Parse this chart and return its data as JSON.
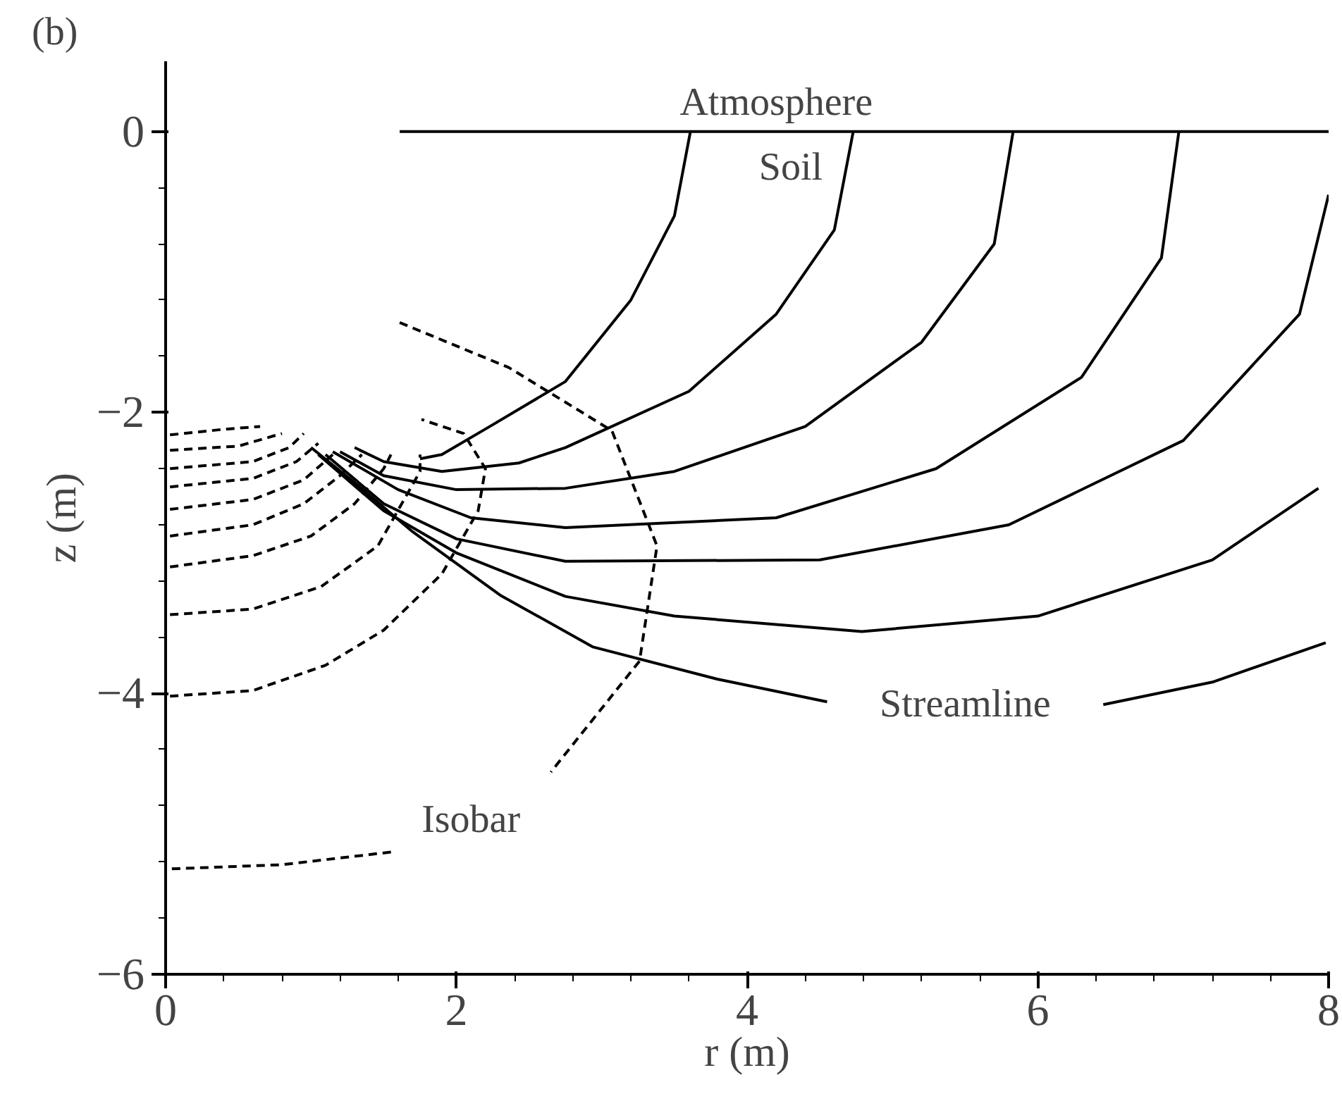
{
  "chart_data": {
    "type": "line",
    "title": "(b)",
    "xlabel": "r (m)",
    "ylabel": "z (m)",
    "xlim": [
      0,
      8
    ],
    "ylim": [
      -6,
      0.5
    ],
    "xticks": [
      0,
      2,
      4,
      6,
      8
    ],
    "yticks": [
      -6,
      -4,
      -2,
      0
    ],
    "grid": false,
    "series": [
      {
        "color": "#000000",
        "line_style": "solid",
        "x": [
          1.61,
          8
        ],
        "values": [
          0,
          0
        ]
      },
      {
        "color": "#000000",
        "line_style": "solid",
        "x": [
          3.61,
          3.5,
          3.2,
          2.75,
          2.23,
          1.9,
          1.75
        ],
        "values": [
          0,
          -0.6,
          -1.2,
          -1.78,
          -2.1,
          -2.3,
          -2.33
        ]
      },
      {
        "color": "#000000",
        "line_style": "solid",
        "x": [
          4.73,
          4.6,
          4.2,
          3.6,
          2.75,
          2.43,
          1.9,
          1.5,
          1.3
        ],
        "values": [
          0,
          -0.7,
          -1.3,
          -1.85,
          -2.25,
          -2.36,
          -2.42,
          -2.35,
          -2.25
        ]
      },
      {
        "color": "#000000",
        "line_style": "solid",
        "x": [
          5.83,
          5.7,
          5.2,
          4.4,
          3.5,
          2.75,
          2.0,
          1.5,
          1.2
        ],
        "values": [
          0,
          -0.8,
          -1.5,
          -2.1,
          -2.42,
          -2.54,
          -2.55,
          -2.45,
          -2.28
        ]
      },
      {
        "color": "#000000",
        "line_style": "solid",
        "x": [
          6.97,
          6.85,
          6.3,
          5.3,
          4.2,
          2.75,
          2.1,
          1.6,
          1.15
        ],
        "values": [
          0,
          -0.9,
          -1.75,
          -2.4,
          -2.75,
          -2.82,
          -2.75,
          -2.55,
          -2.28
        ]
      },
      {
        "color": "#000000",
        "line_style": "solid",
        "x": [
          8.0,
          7.8,
          7.0,
          5.8,
          4.5,
          2.75,
          2.0,
          1.5,
          1.1
        ],
        "values": [
          -0.45,
          -1.3,
          -2.2,
          -2.8,
          -3.05,
          -3.06,
          -2.9,
          -2.65,
          -2.3
        ]
      },
      {
        "color": "#000000",
        "line_style": "solid",
        "x": [
          7.93,
          7.2,
          6.0,
          4.79,
          3.5,
          2.75,
          2.0,
          1.5,
          1.05
        ],
        "values": [
          -2.54,
          -3.05,
          -3.45,
          -3.56,
          -3.45,
          -3.31,
          -3.0,
          -2.7,
          -2.3
        ]
      },
      {
        "color": "#000000",
        "line_style": "solid",
        "x": [
          7.98,
          7.2,
          6.45,
          5.5,
          4.55,
          3.8,
          2.94,
          2.3,
          1.7,
          1.3,
          1.0
        ],
        "values": [
          -3.64,
          -3.92,
          -4.08,
          null,
          -4.06,
          -3.9,
          -3.67,
          -3.3,
          -2.85,
          -2.5,
          -2.25
        ]
      },
      {
        "color": "#000000",
        "line_style": "dashed",
        "x": [
          1.61,
          2.36,
          3.07,
          3.38,
          3.26,
          2.65,
          2.1,
          1.55,
          0.8,
          0.03
        ],
        "values": [
          -1.36,
          -1.68,
          -2.13,
          -2.95,
          -3.77,
          -4.56,
          null,
          -5.13,
          -5.22,
          -5.25
        ]
      },
      {
        "color": "#000000",
        "line_style": "dashed",
        "x": [
          0.03,
          0.6,
          1.1,
          1.5,
          1.9,
          2.15,
          2.2,
          2.05,
          1.76
        ],
        "values": [
          -4.02,
          -3.98,
          -3.8,
          -3.55,
          -3.15,
          -2.7,
          -2.4,
          -2.15,
          -2.05
        ]
      },
      {
        "color": "#000000",
        "line_style": "dashed",
        "x": [
          0.03,
          0.6,
          1.07,
          1.46,
          1.75,
          1.75
        ],
        "values": [
          -3.44,
          -3.4,
          -3.24,
          -2.95,
          -2.42,
          -2.3
        ]
      },
      {
        "color": "#000000",
        "line_style": "dashed",
        "x": [
          0.03,
          0.6,
          1.0,
          1.3,
          1.5,
          1.55
        ],
        "values": [
          -3.1,
          -3.02,
          -2.88,
          -2.65,
          -2.4,
          -2.3
        ]
      },
      {
        "color": "#000000",
        "line_style": "dashed",
        "x": [
          0.03,
          0.6,
          0.95,
          1.2,
          1.35
        ],
        "values": [
          -2.88,
          -2.8,
          -2.65,
          -2.45,
          -2.3
        ]
      },
      {
        "color": "#000000",
        "line_style": "dashed",
        "x": [
          0.03,
          0.6,
          0.95,
          1.15
        ],
        "values": [
          -2.69,
          -2.62,
          -2.48,
          -2.3
        ]
      },
      {
        "color": "#000000",
        "line_style": "dashed",
        "x": [
          0.03,
          0.6,
          0.9,
          1.05
        ],
        "values": [
          -2.53,
          -2.47,
          -2.35,
          -2.22
        ]
      },
      {
        "color": "#000000",
        "line_style": "dashed",
        "x": [
          0.03,
          0.6,
          0.85,
          0.95
        ],
        "values": [
          -2.4,
          -2.35,
          -2.25,
          -2.15
        ]
      },
      {
        "color": "#000000",
        "line_style": "dashed",
        "x": [
          0.03,
          0.5,
          0.8
        ],
        "values": [
          -2.27,
          -2.24,
          -2.15
        ]
      },
      {
        "color": "#000000",
        "line_style": "dashed",
        "x": [
          0.03,
          0.4,
          0.65
        ],
        "values": [
          -2.16,
          -2.12,
          -2.1
        ]
      }
    ],
    "annotations": [
      "Atmosphere",
      "Soil",
      "Streamline",
      "Isobar"
    ]
  }
}
